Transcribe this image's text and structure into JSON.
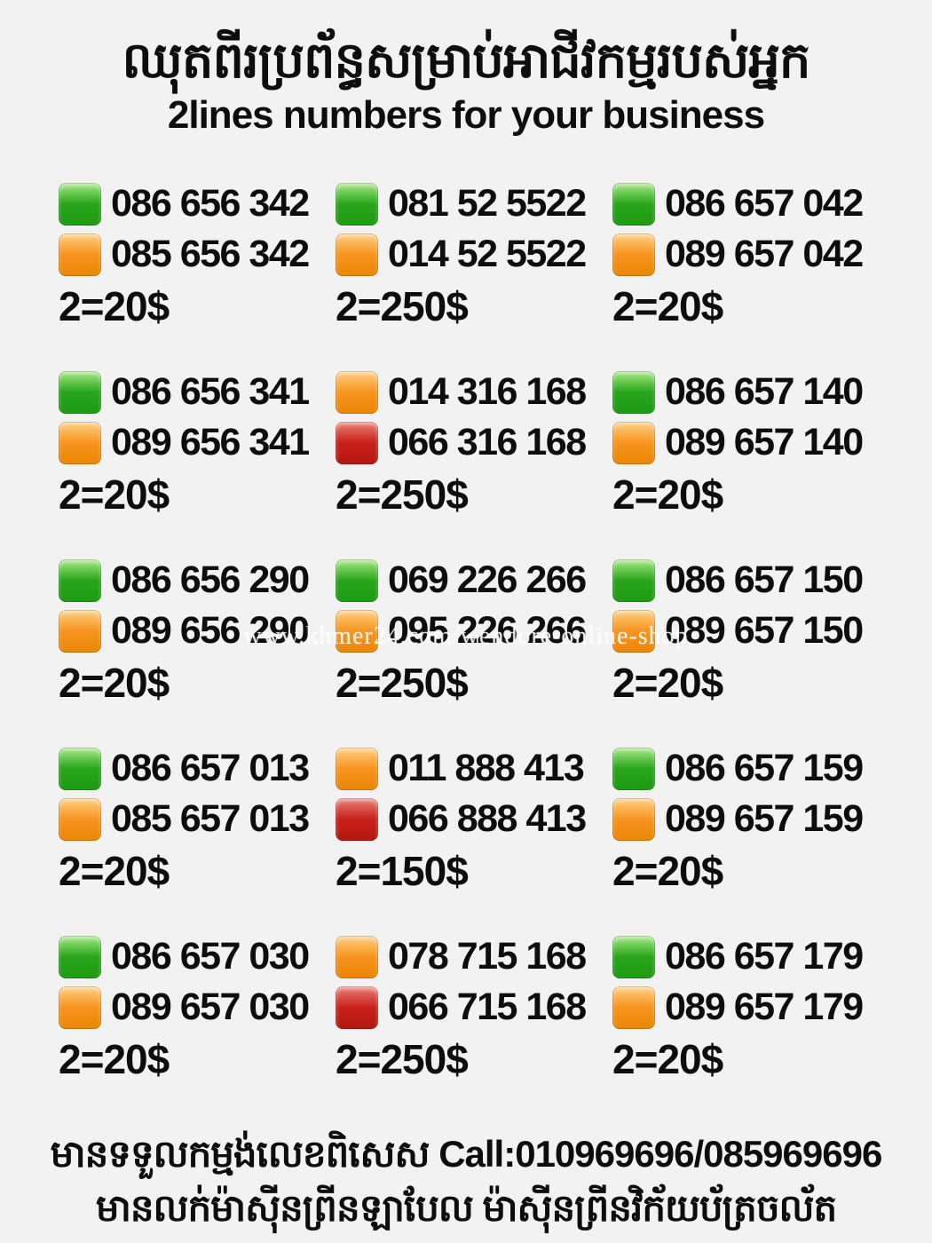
{
  "header": {
    "title_khmer": "ឈុតពីរប្រព័ន្ធសម្រាប់អាជីវកម្មរបស់អ្នក",
    "subtitle": "2lines numbers for your business"
  },
  "colors": {
    "green": "#27a51b",
    "orange": "#f7941e",
    "red": "#c9201a",
    "background": "#f2f2f2",
    "text": "#0d0d0d",
    "watermark_text": "#ffffff"
  },
  "watermark": {
    "text": "www.khmer24.com/wendore-online-shop"
  },
  "grid": {
    "cells": [
      {
        "pairs": [
          {
            "color": "green",
            "number": "086 656 342"
          },
          {
            "color": "orange",
            "number": "085 656 342"
          }
        ],
        "price": "2=20$"
      },
      {
        "pairs": [
          {
            "color": "green",
            "number": "081 52 5522"
          },
          {
            "color": "orange",
            "number": "014 52 5522"
          }
        ],
        "price": "2=250$"
      },
      {
        "pairs": [
          {
            "color": "green",
            "number": "086 657 042"
          },
          {
            "color": "orange",
            "number": "089 657 042"
          }
        ],
        "price": "2=20$"
      },
      {
        "pairs": [
          {
            "color": "green",
            "number": "086 656 341"
          },
          {
            "color": "orange",
            "number": "089 656 341"
          }
        ],
        "price": "2=20$"
      },
      {
        "pairs": [
          {
            "color": "orange",
            "number": "014 316 168"
          },
          {
            "color": "red",
            "number": "066 316 168"
          }
        ],
        "price": "2=250$"
      },
      {
        "pairs": [
          {
            "color": "green",
            "number": "086 657 140"
          },
          {
            "color": "orange",
            "number": "089 657 140"
          }
        ],
        "price": "2=20$"
      },
      {
        "pairs": [
          {
            "color": "green",
            "number": "086 656 290"
          },
          {
            "color": "orange",
            "number": "089 656 290"
          }
        ],
        "price": "2=20$"
      },
      {
        "pairs": [
          {
            "color": "green",
            "number": "069 226 266"
          },
          {
            "color": "orange",
            "number": "095 226 266"
          }
        ],
        "price": "2=250$"
      },
      {
        "pairs": [
          {
            "color": "green",
            "number": "086 657 150"
          },
          {
            "color": "orange",
            "number": "089 657 150"
          }
        ],
        "price": "2=20$"
      },
      {
        "pairs": [
          {
            "color": "green",
            "number": "086 657 013"
          },
          {
            "color": "orange",
            "number": "085 657 013"
          }
        ],
        "price": "2=20$"
      },
      {
        "pairs": [
          {
            "color": "orange",
            "number": "011 888 413"
          },
          {
            "color": "red",
            "number": "066 888 413"
          }
        ],
        "price": "2=150$"
      },
      {
        "pairs": [
          {
            "color": "green",
            "number": "086 657 159"
          },
          {
            "color": "orange",
            "number": "089 657 159"
          }
        ],
        "price": "2=20$"
      },
      {
        "pairs": [
          {
            "color": "green",
            "number": "086 657 030"
          },
          {
            "color": "orange",
            "number": "089 657 030"
          }
        ],
        "price": "2=20$"
      },
      {
        "pairs": [
          {
            "color": "orange",
            "number": "078 715 168"
          },
          {
            "color": "red",
            "number": "066 715 168"
          }
        ],
        "price": "2=250$"
      },
      {
        "pairs": [
          {
            "color": "green",
            "number": "086 657 179"
          },
          {
            "color": "orange",
            "number": "089 657 179"
          }
        ],
        "price": "2=20$"
      }
    ]
  },
  "footer": {
    "line1": "មានទទួលកម្មង់លេខពិសេស Call:010969696/085969696",
    "line2": "មានលក់ម៉ាស៊ីនព្រីនឡាបែល ម៉ាស៊ីនព្រីនវិក័យប័ត្រចល័ត"
  }
}
